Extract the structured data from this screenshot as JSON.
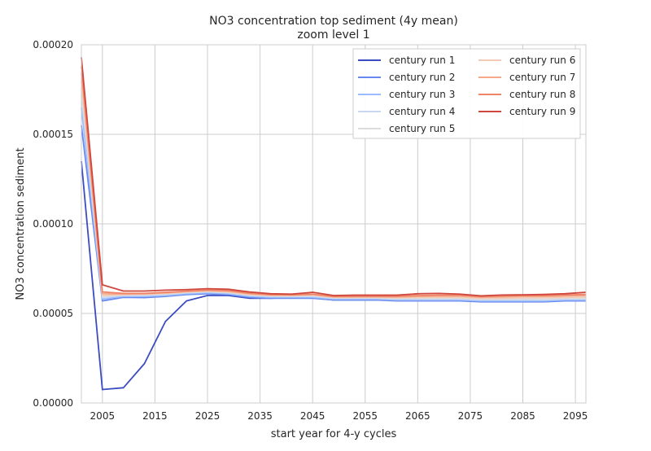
{
  "chart_data": {
    "type": "line",
    "title": "NO3 concentration top sediment (4y mean)",
    "subtitle": "zoom level 1",
    "xlabel": "start year for 4-y cycles",
    "ylabel": "NO3 concentration sediment",
    "xlim": [
      2001,
      2097
    ],
    "ylim": [
      0.0,
      0.0002
    ],
    "x_ticks": [
      2005,
      2015,
      2025,
      2035,
      2045,
      2055,
      2065,
      2075,
      2085,
      2095
    ],
    "x_tick_labels": [
      "2005",
      "2015",
      "2025",
      "2035",
      "2045",
      "2055",
      "2065",
      "2075",
      "2085",
      "2095"
    ],
    "y_ticks": [
      0.0,
      5e-05,
      0.0001,
      0.00015,
      0.0002
    ],
    "y_tick_labels": [
      "0.00000",
      "0.00005",
      "0.00010",
      "0.00015",
      "0.00020"
    ],
    "grid": true,
    "legend_position": "top-right",
    "x": [
      2001,
      2005,
      2009,
      2013,
      2017,
      2021,
      2025,
      2029,
      2033,
      2037,
      2041,
      2045,
      2049,
      2053,
      2057,
      2061,
      2065,
      2069,
      2073,
      2077,
      2081,
      2085,
      2089,
      2093,
      2097
    ],
    "series": [
      {
        "name": "century run 1",
        "color": "#3b4cc0",
        "values": [
          0.000135,
          7.5e-06,
          8.5e-06,
          2.2e-05,
          4.55e-05,
          5.7e-05,
          6e-05,
          6e-05,
          5.85e-05,
          5.85e-05,
          5.9e-05,
          5.9e-05,
          5.75e-05,
          5.75e-05,
          5.75e-05,
          5.75e-05,
          5.75e-05,
          5.75e-05,
          5.75e-05,
          5.75e-05,
          5.75e-05,
          5.75e-05,
          5.75e-05,
          5.8e-05,
          5.8e-05
        ]
      },
      {
        "name": "century run 2",
        "color": "#6788ee",
        "values": [
          0.000155,
          5.7e-05,
          5.9e-05,
          5.88e-05,
          5.95e-05,
          6.05e-05,
          6.1e-05,
          6.05e-05,
          5.9e-05,
          5.85e-05,
          5.85e-05,
          5.85e-05,
          5.75e-05,
          5.75e-05,
          5.75e-05,
          5.7e-05,
          5.7e-05,
          5.7e-05,
          5.7e-05,
          5.65e-05,
          5.65e-05,
          5.65e-05,
          5.65e-05,
          5.7e-05,
          5.7e-05
        ]
      },
      {
        "name": "century run 3",
        "color": "#9abbff",
        "values": [
          0.000165,
          5.8e-05,
          5.95e-05,
          5.95e-05,
          6e-05,
          6.1e-05,
          6.15e-05,
          6.1e-05,
          5.95e-05,
          5.9e-05,
          5.9e-05,
          5.9e-05,
          5.8e-05,
          5.8e-05,
          5.8e-05,
          5.75e-05,
          5.75e-05,
          5.75e-05,
          5.75e-05,
          5.7e-05,
          5.7e-05,
          5.7e-05,
          5.7e-05,
          5.75e-05,
          5.75e-05
        ]
      },
      {
        "name": "century run 4",
        "color": "#c9d7f0",
        "values": [
          0.000172,
          5.9e-05,
          6e-05,
          6e-05,
          6.05e-05,
          6.15e-05,
          6.2e-05,
          6.15e-05,
          6e-05,
          5.95e-05,
          5.95e-05,
          5.95e-05,
          5.85e-05,
          5.85e-05,
          5.85e-05,
          5.8e-05,
          5.8e-05,
          5.8e-05,
          5.8e-05,
          5.75e-05,
          5.75e-05,
          5.75e-05,
          5.75e-05,
          5.8e-05,
          5.8e-05
        ]
      },
      {
        "name": "century run 5",
        "color": "#dddcdc",
        "values": [
          0.000176,
          5.95e-05,
          6.03e-05,
          6.05e-05,
          6.1e-05,
          6.18e-05,
          6.22e-05,
          6.18e-05,
          6.03e-05,
          5.98e-05,
          5.98e-05,
          6e-05,
          5.88e-05,
          5.88e-05,
          5.88e-05,
          5.85e-05,
          5.85e-05,
          5.85e-05,
          5.85e-05,
          5.8e-05,
          5.8e-05,
          5.8e-05,
          5.8e-05,
          5.85e-05,
          5.85e-05
        ]
      },
      {
        "name": "century run 6",
        "color": "#f2cbb7",
        "values": [
          0.00018,
          6e-05,
          6.06e-05,
          6.08e-05,
          6.12e-05,
          6.2e-05,
          6.25e-05,
          6.2e-05,
          6.06e-05,
          6e-05,
          6e-05,
          6.03e-05,
          5.9e-05,
          5.9e-05,
          5.9e-05,
          5.88e-05,
          5.9e-05,
          5.9e-05,
          5.9e-05,
          5.85e-05,
          5.85e-05,
          5.88e-05,
          5.88e-05,
          5.9e-05,
          5.92e-05
        ]
      },
      {
        "name": "century run 7",
        "color": "#f7a889",
        "values": [
          0.000184,
          6.1e-05,
          6.08e-05,
          6.1e-05,
          6.15e-05,
          6.22e-05,
          6.28e-05,
          6.24e-05,
          6.1e-05,
          6.03e-05,
          6.02e-05,
          6.05e-05,
          5.92e-05,
          5.93e-05,
          5.93e-05,
          5.92e-05,
          5.95e-05,
          5.97e-05,
          5.97e-05,
          5.9e-05,
          5.92e-05,
          5.95e-05,
          5.95e-05,
          5.98e-05,
          6e-05
        ]
      },
      {
        "name": "century run 8",
        "color": "#ee8468",
        "values": [
          0.000188,
          6.2e-05,
          6.12e-05,
          6.12e-05,
          6.18e-05,
          6.25e-05,
          6.3e-05,
          6.28e-05,
          6.13e-05,
          6.05e-05,
          6.04e-05,
          6.08e-05,
          5.95e-05,
          5.96e-05,
          5.96e-05,
          5.96e-05,
          6e-05,
          6.02e-05,
          6.02e-05,
          5.95e-05,
          5.98e-05,
          6e-05,
          6e-05,
          6.03e-05,
          6.06e-05
        ]
      },
      {
        "name": "century run 9",
        "color": "#d0473d",
        "values": [
          0.000193,
          6.6e-05,
          6.25e-05,
          6.25e-05,
          6.3e-05,
          6.33e-05,
          6.38e-05,
          6.35e-05,
          6.2e-05,
          6.1e-05,
          6.08e-05,
          6.18e-05,
          6e-05,
          6.02e-05,
          6.02e-05,
          6.02e-05,
          6.1e-05,
          6.12e-05,
          6.08e-05,
          5.98e-05,
          6.03e-05,
          6.04e-05,
          6.06e-05,
          6.1e-05,
          6.18e-05
        ]
      }
    ]
  }
}
